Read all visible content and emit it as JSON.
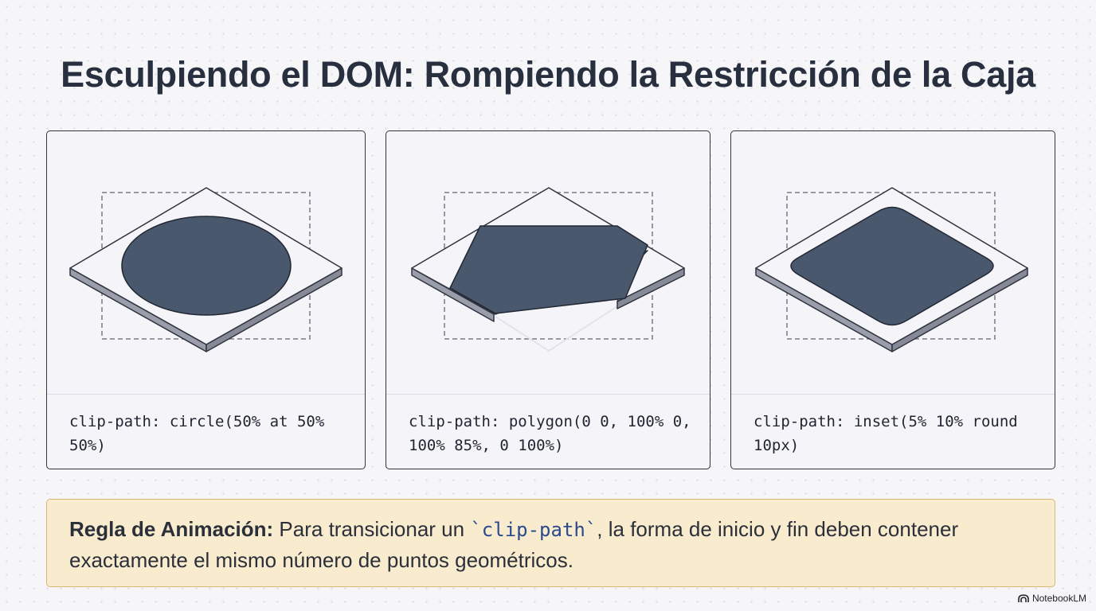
{
  "title": "Esculpiendo el DOM: Rompiendo la Restricción de la Caja",
  "cards": [
    {
      "shape": "circle",
      "caption": "clip-path: circle(50% at 50% 50%)"
    },
    {
      "shape": "polygon",
      "caption": "clip-path: polygon(0 0, 100% 0, 100% 85%, 0 100%)"
    },
    {
      "shape": "inset",
      "caption": "clip-path: inset(5% 10% round 10px)"
    }
  ],
  "rule": {
    "label": "Regla de Animación:",
    "text_before": " Para transicionar un ",
    "code": "`clip-path`",
    "text_after": ", la forma de inicio y fin deben contener exactamente el mismo número de puntos geométricos."
  },
  "brand": {
    "name": "NotebookLM",
    "icon": "notebooklm-logo-icon"
  },
  "colors": {
    "shape_fill": "#4a586d",
    "slab_top": "#f5f5f9",
    "slab_side": "#9a9eaa",
    "rule_background": "#f9ecce",
    "rule_border": "#d8b774",
    "code_color": "#2b4a8c"
  }
}
